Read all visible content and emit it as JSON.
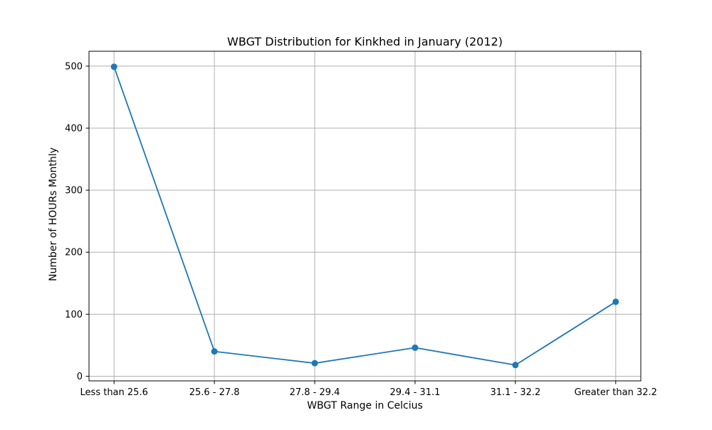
{
  "chart_data": {
    "type": "line",
    "title": "WBGT Distribution for Kinkhed in January (2012)",
    "xlabel": "WBGT Range in Celcius",
    "ylabel": "Number of HOURs Monthly",
    "categories": [
      "Less than 25.6",
      "25.6 - 27.8",
      "27.8 - 29.4",
      "29.4 - 31.1",
      "31.1 - 32.2",
      "Greater than 32.2"
    ],
    "series": [
      {
        "values": [
          499,
          40,
          21,
          46,
          18,
          120
        ]
      }
    ],
    "yticks": [
      0,
      100,
      200,
      300,
      400,
      500
    ],
    "ylim": [
      -7.5,
      524
    ],
    "grid": true,
    "marker": "circle",
    "colors": {
      "line": "#1f77b4",
      "grid": "#b0b0b0",
      "axes": "#000000"
    }
  }
}
